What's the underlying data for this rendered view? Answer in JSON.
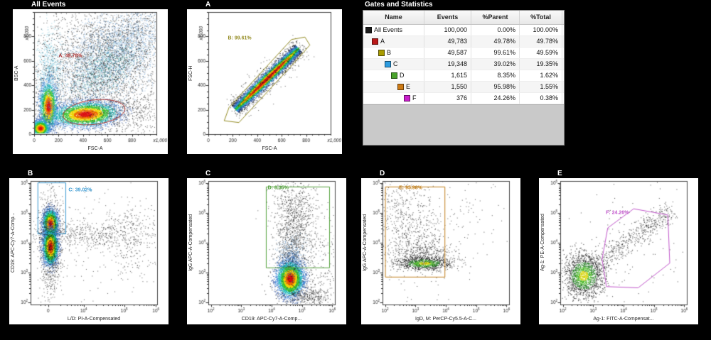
{
  "table": {
    "title": "Gates and Statistics",
    "columns": [
      "Name",
      "Events",
      "%Parent",
      "%Total"
    ],
    "rows": [
      {
        "name": "All Events",
        "color": "#1c1c1c",
        "indent": 0,
        "events": "100,000",
        "parent": "0.00%",
        "total": "100.00%"
      },
      {
        "name": "A",
        "color": "#bb1919",
        "indent": 1,
        "events": "49,783",
        "parent": "49.78%",
        "total": "49.78%"
      },
      {
        "name": "B",
        "color": "#a89b00",
        "indent": 2,
        "events": "49,587",
        "parent": "99.61%",
        "total": "49.59%"
      },
      {
        "name": "C",
        "color": "#2d9ce0",
        "indent": 3,
        "events": "19,348",
        "parent": "39.02%",
        "total": "19.35%"
      },
      {
        "name": "D",
        "color": "#49a32b",
        "indent": 4,
        "events": "1,615",
        "parent": "8.35%",
        "total": "1.62%"
      },
      {
        "name": "E",
        "color": "#cc7a16",
        "indent": 5,
        "events": "1,550",
        "parent": "95.98%",
        "total": "1.55%"
      },
      {
        "name": "F",
        "color": "#c91ecb",
        "indent": 6,
        "events": "376",
        "parent": "24.26%",
        "total": "0.38%"
      }
    ]
  },
  "chart_data": [
    {
      "id": "all-events",
      "title": "All Events",
      "type": "scatter",
      "x_label": "FSC-A",
      "y_label": "BSC-A",
      "x_axis": {
        "kind": "linear",
        "end_label": "x1,000",
        "ticks": [
          {
            "f": 0,
            "label": "0"
          },
          {
            "f": 0.2,
            "label": "200"
          },
          {
            "f": 0.4,
            "label": "400"
          },
          {
            "f": 0.6,
            "label": "600"
          },
          {
            "f": 0.8,
            "label": "800"
          }
        ]
      },
      "y_axis": {
        "kind": "linear",
        "end_label": "x1,000",
        "ticks": [
          {
            "f": 0,
            "label": "0"
          },
          {
            "f": 0.2,
            "label": "200"
          },
          {
            "f": 0.4,
            "label": "400"
          },
          {
            "f": 0.6,
            "label": "600"
          },
          {
            "f": 0.8,
            "label": "800"
          }
        ]
      },
      "gate": {
        "name": "A",
        "label": "A: 49.78%",
        "color": "#ab2f2f",
        "shape": "ellipse",
        "cx": 0.49,
        "cy": 0.82,
        "rx": 0.255,
        "ry": 0.1,
        "rot": -7,
        "label_pos": [
          0.2,
          0.36
        ]
      },
      "populations": [
        {
          "type": "gauss",
          "palette": "mono",
          "color": "#1b1b1b",
          "alpha": 0.75,
          "cx": 0.45,
          "cy": 0.5,
          "sx": 0.3,
          "sy": 0.3,
          "rot": 0,
          "count": 2400
        },
        {
          "type": "gauss",
          "palette": "mono",
          "color": "#4587c9",
          "alpha": 0.5,
          "cx": 0.66,
          "cy": 0.33,
          "sx": 0.3,
          "sy": 0.15,
          "rot": -38,
          "count": 3000
        },
        {
          "type": "gauss",
          "palette": "mono",
          "color": "#1b1b1b",
          "alpha": 0.7,
          "cx": 0.7,
          "cy": 0.3,
          "sx": 0.27,
          "sy": 0.16,
          "rot": -38,
          "count": 1300
        },
        {
          "type": "gauss",
          "palette": "mono",
          "color": "#35b6b6",
          "alpha": 0.45,
          "cx": 0.58,
          "cy": 0.45,
          "sx": 0.17,
          "sy": 0.09,
          "rot": -35,
          "count": 800
        },
        {
          "type": "gauss",
          "palette": "jet",
          "cx": 0.115,
          "cy": 0.77,
          "sx": 0.035,
          "sy": 0.1,
          "rot": 0,
          "count": 2300
        },
        {
          "type": "gauss",
          "palette": "mono",
          "color": "#3fb0d0",
          "alpha": 0.5,
          "cx": 0.12,
          "cy": 0.52,
          "sx": 0.05,
          "sy": 0.17,
          "rot": 0,
          "count": 800
        },
        {
          "type": "gauss",
          "palette": "jet",
          "cx": 0.42,
          "cy": 0.835,
          "sx": 0.135,
          "sy": 0.05,
          "rot": -3,
          "count": 3800
        },
        {
          "type": "gauss",
          "palette": "jet",
          "cx": 0.05,
          "cy": 0.95,
          "sx": 0.035,
          "sy": 0.033,
          "rot": 0,
          "count": 1500
        },
        {
          "type": "gauss",
          "palette": "mono",
          "color": "#1b1b1b",
          "alpha": 0.7,
          "cx": 0.74,
          "cy": 0.82,
          "sx": 0.18,
          "sy": 0.09,
          "rot": 0,
          "count": 450
        }
      ]
    },
    {
      "id": "A",
      "title": "A",
      "type": "scatter",
      "x_label": "FSC-A",
      "y_label": "FSC-H",
      "x_axis": {
        "kind": "linear",
        "end_label": "x1,000",
        "ticks": [
          {
            "f": 0,
            "label": "0"
          },
          {
            "f": 0.2,
            "label": "200"
          },
          {
            "f": 0.4,
            "label": "400"
          },
          {
            "f": 0.6,
            "label": "600"
          },
          {
            "f": 0.8,
            "label": "800"
          }
        ]
      },
      "y_axis": {
        "kind": "linear",
        "end_label": "x1,000",
        "ticks": [
          {
            "f": 0,
            "label": "0"
          },
          {
            "f": 0.2,
            "label": "200"
          },
          {
            "f": 0.4,
            "label": "400"
          },
          {
            "f": 0.6,
            "label": "600"
          },
          {
            "f": 0.8,
            "label": "800"
          }
        ]
      },
      "gate": {
        "name": "B",
        "label": "B: 99.61%",
        "color": "#958d25",
        "shape": "polygon",
        "points": [
          [
            0.13,
            0.89
          ],
          [
            0.17,
            0.78
          ],
          [
            0.68,
            0.225
          ],
          [
            0.79,
            0.205
          ],
          [
            0.83,
            0.27
          ],
          [
            0.74,
            0.375
          ],
          [
            0.25,
            0.905
          ]
        ],
        "label_pos": [
          0.16,
          0.215
        ]
      },
      "populations": [
        {
          "type": "band",
          "palette": "jet",
          "x1": 0.22,
          "y1": 0.795,
          "x2": 0.735,
          "y2": 0.295,
          "sigma": 0.021,
          "count": 7000
        },
        {
          "type": "band",
          "palette": "mono",
          "color": "#1b1b1b",
          "alpha": 0.7,
          "x1": 0.2,
          "y1": 0.82,
          "x2": 0.77,
          "y2": 0.265,
          "sigma": 0.05,
          "count": 650
        }
      ]
    },
    {
      "id": "B",
      "title": "B",
      "type": "scatter",
      "x_label": "L/D: PI-A-Compensated",
      "y_label": "CD19: APC-Cy7-A-Comp...",
      "x_axis": {
        "kind": "biex",
        "ticks": [
          {
            "f": 0.14,
            "label": "0"
          },
          {
            "f": 0.42,
            "exp": 4
          },
          {
            "f": 0.74,
            "exp": 5
          },
          {
            "f": 0.99,
            "exp": 6
          }
        ]
      },
      "y_axis": {
        "kind": "log",
        "ticks": [
          {
            "f": 0.02,
            "exp": 2
          },
          {
            "f": 0.26,
            "exp": 3
          },
          {
            "f": 0.5,
            "exp": 4
          },
          {
            "f": 0.74,
            "exp": 5
          },
          {
            "f": 0.98,
            "exp": 6
          }
        ]
      },
      "gate": {
        "name": "C",
        "label": "C: 39.02%",
        "color": "#3a99d2",
        "shape": "rect",
        "x0": 0.055,
        "y0": 0.012,
        "x1": 0.275,
        "y1": 0.425,
        "label_pos": [
          0.3,
          0.075
        ]
      },
      "populations": [
        {
          "type": "gauss",
          "palette": "jet",
          "cx": 0.155,
          "cy": 0.345,
          "sx": 0.03,
          "sy": 0.058,
          "rot": 0,
          "count": 3000
        },
        {
          "type": "gauss",
          "palette": "jet",
          "cx": 0.155,
          "cy": 0.53,
          "sx": 0.03,
          "sy": 0.075,
          "rot": 0,
          "count": 3200
        },
        {
          "type": "gauss",
          "palette": "mono",
          "color": "#1b1b1b",
          "alpha": 0.7,
          "cx": 0.155,
          "cy": 0.52,
          "sx": 0.045,
          "sy": 0.23,
          "rot": 0,
          "count": 800
        },
        {
          "type": "gauss",
          "palette": "mono",
          "color": "#1b1b1b",
          "alpha": 0.7,
          "cx": 0.42,
          "cy": 0.43,
          "sx": 0.2,
          "sy": 0.055,
          "rot": 0,
          "count": 420
        },
        {
          "type": "gauss",
          "palette": "mono",
          "color": "#1b1b1b",
          "alpha": 0.7,
          "cx": 0.8,
          "cy": 0.46,
          "sx": 0.1,
          "sy": 0.14,
          "rot": 0,
          "count": 320
        },
        {
          "type": "gauss",
          "palette": "mono",
          "color": "#1b1b1b",
          "alpha": 0.7,
          "cx": 0.5,
          "cy": 0.52,
          "sx": 0.33,
          "sy": 0.33,
          "rot": 0,
          "count": 220
        }
      ]
    },
    {
      "id": "C",
      "title": "C",
      "type": "scatter",
      "x_label": "CD19: APC-Cy7-A-Comp...",
      "y_label": "IgG APC-A-Compensated",
      "x_axis": {
        "kind": "log",
        "ticks": [
          {
            "f": 0.02,
            "exp": 2
          },
          {
            "f": 0.26,
            "exp": 3
          },
          {
            "f": 0.5,
            "exp": 4
          },
          {
            "f": 0.74,
            "exp": 5
          },
          {
            "f": 0.98,
            "exp": 6
          }
        ]
      },
      "y_axis": {
        "kind": "log",
        "ticks": [
          {
            "f": 0.02,
            "exp": 2
          },
          {
            "f": 0.26,
            "exp": 3
          },
          {
            "f": 0.5,
            "exp": 4
          },
          {
            "f": 0.74,
            "exp": 5
          },
          {
            "f": 0.98,
            "exp": 6
          }
        ]
      },
      "gate": {
        "name": "D",
        "label": "D: 8.35%",
        "color": "#55a23e",
        "shape": "rect",
        "x0": 0.455,
        "y0": 0.045,
        "x1": 0.955,
        "y1": 0.7,
        "label_pos": [
          0.47,
          0.055
        ]
      },
      "populations": [
        {
          "type": "gauss",
          "palette": "jet",
          "cx": 0.645,
          "cy": 0.79,
          "sx": 0.052,
          "sy": 0.072,
          "rot": 0,
          "count": 4200
        },
        {
          "type": "gauss",
          "palette": "mono",
          "color": "#2e6fb0",
          "alpha": 0.5,
          "cx": 0.655,
          "cy": 0.635,
          "sx": 0.055,
          "sy": 0.09,
          "rot": 0,
          "count": 650
        },
        {
          "type": "gauss",
          "palette": "mono",
          "color": "#1b1b1b",
          "alpha": 0.7,
          "cx": 0.665,
          "cy": 0.44,
          "sx": 0.07,
          "sy": 0.19,
          "rot": 0,
          "count": 850
        },
        {
          "type": "gauss",
          "palette": "mono",
          "color": "#1b1b1b",
          "alpha": 0.7,
          "cx": 0.7,
          "cy": 0.2,
          "sx": 0.09,
          "sy": 0.11,
          "rot": 0,
          "count": 330
        },
        {
          "type": "gauss",
          "palette": "mono",
          "color": "#1b1b1b",
          "alpha": 0.7,
          "cx": 0.86,
          "cy": 0.6,
          "sx": 0.09,
          "sy": 0.22,
          "rot": 0,
          "count": 280
        },
        {
          "type": "gauss",
          "palette": "mono",
          "color": "#1b1b1b",
          "alpha": 0.7,
          "cx": 0.78,
          "cy": 0.93,
          "sx": 0.1,
          "sy": 0.04,
          "rot": 0,
          "count": 380
        }
      ]
    },
    {
      "id": "D",
      "title": "D",
      "type": "scatter",
      "x_label": "IgD, M: PerCP-Cy5.5-A-C...",
      "y_label": "IgG APC-A-Compensated",
      "x_axis": {
        "kind": "log",
        "ticks": [
          {
            "f": 0.02,
            "exp": 2
          },
          {
            "f": 0.26,
            "exp": 3
          },
          {
            "f": 0.5,
            "exp": 4
          },
          {
            "f": 0.74,
            "exp": 5
          },
          {
            "f": 0.98,
            "exp": 6
          }
        ]
      },
      "y_axis": {
        "kind": "log",
        "ticks": [
          {
            "f": 0.02,
            "exp": 2
          },
          {
            "f": 0.26,
            "exp": 3
          },
          {
            "f": 0.5,
            "exp": 4
          },
          {
            "f": 0.74,
            "exp": 5
          },
          {
            "f": 0.98,
            "exp": 6
          }
        ]
      },
      "gate": {
        "name": "E",
        "label": "E: 95.98%",
        "color": "#c2801e",
        "shape": "rect",
        "x0": 0.02,
        "y0": 0.045,
        "x1": 0.49,
        "y1": 0.775,
        "label_pos": [
          0.13,
          0.055
        ]
      },
      "populations": [
        {
          "type": "gauss",
          "palette": "mono",
          "color": "#1b1b1b",
          "alpha": 0.75,
          "cx": 0.24,
          "cy": 0.4,
          "sx": 0.14,
          "sy": 0.2,
          "rot": 0,
          "count": 620
        },
        {
          "type": "gauss",
          "palette": "dark",
          "cx": 0.33,
          "cy": 0.665,
          "sx": 0.1,
          "sy": 0.026,
          "rot": 0,
          "count": 900
        },
        {
          "type": "gauss",
          "palette": "mono",
          "color": "#1b1b1b",
          "alpha": 0.75,
          "cx": 0.33,
          "cy": 0.6,
          "sx": 0.13,
          "sy": 0.06,
          "rot": 0,
          "count": 420
        },
        {
          "type": "gauss",
          "palette": "mono",
          "color": "#1b1b1b",
          "alpha": 0.75,
          "cx": 0.72,
          "cy": 0.33,
          "sx": 0.14,
          "sy": 0.2,
          "rot": 0,
          "count": 60
        },
        {
          "type": "gauss",
          "palette": "mono",
          "color": "#1b1b1b",
          "alpha": 0.75,
          "cx": 0.12,
          "cy": 0.14,
          "sx": 0.08,
          "sy": 0.1,
          "rot": 0,
          "count": 70
        }
      ]
    },
    {
      "id": "E",
      "title": "E",
      "type": "scatter",
      "x_label": "Ag-1: FITC-A-Compensat...",
      "y_label": "Ag-1: PE-A-Compensated",
      "x_axis": {
        "kind": "log",
        "ticks": [
          {
            "f": 0.02,
            "exp": 2
          },
          {
            "f": 0.26,
            "exp": 3
          },
          {
            "f": 0.5,
            "exp": 4
          },
          {
            "f": 0.74,
            "exp": 5
          },
          {
            "f": 0.98,
            "exp": 6
          }
        ]
      },
      "y_axis": {
        "kind": "log",
        "ticks": [
          {
            "f": 0.02,
            "exp": 2
          },
          {
            "f": 0.26,
            "exp": 3
          },
          {
            "f": 0.5,
            "exp": 4
          },
          {
            "f": 0.74,
            "exp": 5
          },
          {
            "f": 0.98,
            "exp": 6
          }
        ]
      },
      "gate": {
        "name": "F",
        "label": "F: 24.26%",
        "color": "#c257cc",
        "shape": "polygon",
        "points": [
          [
            0.58,
            0.225
          ],
          [
            0.85,
            0.275
          ],
          [
            0.865,
            0.665
          ],
          [
            0.615,
            0.865
          ],
          [
            0.365,
            0.855
          ],
          [
            0.33,
            0.635
          ],
          [
            0.375,
            0.38
          ]
        ],
        "label_pos": [
          0.36,
          0.26
        ]
      },
      "populations": [
        {
          "type": "gauss",
          "palette": "dark",
          "cx": 0.185,
          "cy": 0.765,
          "sx": 0.075,
          "sy": 0.085,
          "rot": 0,
          "count": 1700
        },
        {
          "type": "band",
          "palette": "mono",
          "color": "#1b1b1b",
          "alpha": 0.8,
          "x1": 0.28,
          "y1": 0.68,
          "x2": 0.88,
          "y2": 0.23,
          "sigma": 0.045,
          "count": 520
        },
        {
          "type": "gauss",
          "palette": "mono",
          "color": "#1b1b1b",
          "alpha": 0.8,
          "cx": 0.5,
          "cy": 0.48,
          "sx": 0.3,
          "sy": 0.27,
          "rot": 0,
          "count": 110
        }
      ]
    }
  ]
}
